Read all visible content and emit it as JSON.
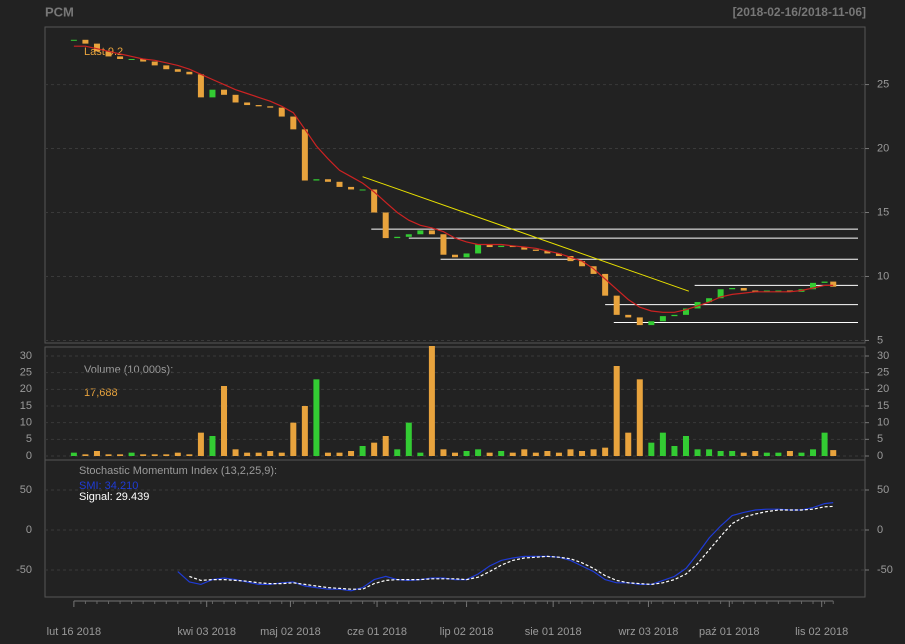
{
  "chart_data": {
    "type": "candlestick",
    "title": "PCM",
    "date_range": "[2018-02-16/2018-11-06]",
    "last_label": "Last 9.2",
    "x": [
      "2018-02-16",
      "2018-02-20",
      "2018-02-24",
      "2018-02-28",
      "2018-03-04",
      "2018-03-08",
      "2018-03-12",
      "2018-03-16",
      "2018-03-20",
      "2018-03-24",
      "2018-03-28",
      "2018-04-01",
      "2018-04-05",
      "2018-04-09",
      "2018-04-13",
      "2018-04-17",
      "2018-04-21",
      "2018-04-25",
      "2018-04-29",
      "2018-05-03",
      "2018-05-07",
      "2018-05-11",
      "2018-05-15",
      "2018-05-19",
      "2018-05-23",
      "2018-05-27",
      "2018-05-31",
      "2018-06-04",
      "2018-06-08",
      "2018-06-12",
      "2018-06-16",
      "2018-06-20",
      "2018-06-24",
      "2018-06-28",
      "2018-07-02",
      "2018-07-06",
      "2018-07-10",
      "2018-07-14",
      "2018-07-18",
      "2018-07-22",
      "2018-07-26",
      "2018-07-30",
      "2018-08-03",
      "2018-08-07",
      "2018-08-11",
      "2018-08-15",
      "2018-08-19",
      "2018-08-23",
      "2018-08-27",
      "2018-08-31",
      "2018-09-04",
      "2018-09-08",
      "2018-09-12",
      "2018-09-16",
      "2018-09-20",
      "2018-09-24",
      "2018-09-28",
      "2018-10-02",
      "2018-10-06",
      "2018-10-10",
      "2018-10-14",
      "2018-10-18",
      "2018-10-22",
      "2018-10-26",
      "2018-10-30",
      "2018-11-03",
      "2018-11-06"
    ],
    "xlim": [
      "2018-02-06",
      "2018-11-17"
    ],
    "xticks": [
      {
        "value": "2018-02-16",
        "label": "lut 16 2018"
      },
      {
        "value": "2018-04-03",
        "label": "kwi 03 2018"
      },
      {
        "value": "2018-05-02",
        "label": "maj 02 2018"
      },
      {
        "value": "2018-06-01",
        "label": "cze 01 2018"
      },
      {
        "value": "2018-07-02",
        "label": "lip 02 2018"
      },
      {
        "value": "2018-08-01",
        "label": "sie 01 2018"
      },
      {
        "value": "2018-09-03",
        "label": "wrz 03 2018"
      },
      {
        "value": "2018-10-01",
        "label": "paź 01 2018"
      },
      {
        "value": "2018-11-02",
        "label": "lis 02 2018"
      }
    ],
    "close": [
      28.5,
      28.2,
      27.6,
      27.2,
      27.0,
      27.0,
      26.8,
      26.5,
      26.2,
      26.0,
      25.8,
      24.0,
      24.6,
      24.2,
      23.6,
      23.4,
      23.3,
      23.2,
      22.5,
      21.5,
      17.5,
      17.6,
      17.4,
      17.0,
      16.8,
      16.8,
      15.0,
      13.0,
      13.1,
      13.3,
      13.6,
      13.3,
      11.7,
      11.5,
      11.8,
      12.5,
      12.3,
      12.4,
      12.3,
      12.1,
      12.0,
      11.8,
      11.6,
      11.2,
      10.8,
      10.2,
      8.5,
      7.0,
      6.8,
      6.2,
      6.5,
      6.9,
      7.0,
      7.5,
      8.0,
      8.3,
      9.0,
      9.1,
      8.9,
      8.8,
      8.9,
      8.9,
      8.8,
      9.0,
      9.5,
      9.6,
      9.2
    ],
    "up_color": "#33cc33",
    "down_color": "#e8a33d",
    "ylim": [
      4.8,
      29.5
    ],
    "yticks": [
      5,
      10,
      15,
      20,
      25
    ],
    "grid": true,
    "ma": {
      "color": "#cc2222",
      "values": [
        28.0,
        28.0,
        27.8,
        27.6,
        27.4,
        27.2,
        27.0,
        26.9,
        26.7,
        26.5,
        26.2,
        25.8,
        25.4,
        25.0,
        24.6,
        24.3,
        24.0,
        23.7,
        23.3,
        22.8,
        21.5,
        20.2,
        19.2,
        18.3,
        17.8,
        17.3,
        16.6,
        15.8,
        15.0,
        14.4,
        14.0,
        13.8,
        13.5,
        13.0,
        12.7,
        12.5,
        12.5,
        12.5,
        12.4,
        12.3,
        12.2,
        12.0,
        11.8,
        11.5,
        11.2,
        10.6,
        9.8,
        9.0,
        8.2,
        7.6,
        7.3,
        7.2,
        7.2,
        7.4,
        7.7,
        8.0,
        8.4,
        8.6,
        8.7,
        8.8,
        8.8,
        8.8,
        8.8,
        8.9,
        9.1,
        9.3,
        9.3
      ]
    },
    "trend": {
      "color": "#e8e000",
      "x": [
        "2018-05-27",
        "2018-09-17"
      ],
      "y": [
        17.8,
        8.85
      ]
    },
    "levels": {
      "color": "#ffffff",
      "x": [
        "2018-05-30",
        "2018-06-12",
        "2018-06-23",
        "2018-09-19",
        "2018-08-19",
        "2018-08-22"
      ],
      "y": [
        13.7,
        13.0,
        11.35,
        9.3,
        7.8,
        6.4
      ]
    },
    "volume": {
      "title": "Volume (10,000s):",
      "last_label": "17,688",
      "ylim": [
        -1.2,
        32.7
      ],
      "yticks": [
        0,
        5,
        10,
        15,
        20,
        25,
        30
      ],
      "values": [
        1,
        0.5,
        1.5,
        0.5,
        0.5,
        1,
        0.5,
        0.5,
        0.5,
        1,
        0.5,
        7,
        6,
        21,
        2,
        1,
        1,
        1.5,
        1,
        10,
        15,
        23,
        1,
        1,
        1.5,
        3,
        4,
        6,
        2,
        10,
        1,
        33,
        2,
        1,
        1.5,
        2,
        1,
        1.5,
        1,
        2,
        1,
        1.5,
        1,
        2,
        1.5,
        2,
        2.5,
        27,
        7,
        23,
        4,
        7,
        3,
        6,
        2,
        2,
        1.5,
        1.5,
        1,
        1.5,
        1,
        1,
        1.5,
        1,
        2,
        7,
        1.7688
      ]
    },
    "smi": {
      "title": "Stochastic Momentum Index (13,2,25,9):",
      "ylim": [
        -83.75,
        87.5
      ],
      "yticks": [
        -50,
        0,
        50
      ],
      "series": [
        {
          "name": "SMI: 34.210",
          "color": "#1f3bd6",
          "values": [
            null,
            null,
            null,
            null,
            null,
            null,
            null,
            null,
            null,
            -52,
            -65,
            -68,
            -62,
            -60,
            -62,
            -65,
            -68,
            -68,
            -66,
            -65,
            -70,
            -72,
            -74,
            -74,
            -76,
            -72,
            -62,
            -58,
            -62,
            -63,
            -62,
            -60,
            -60,
            -62,
            -62,
            -55,
            -45,
            -38,
            -35,
            -33,
            -33,
            -33,
            -34,
            -38,
            -45,
            -52,
            -62,
            -66,
            -66,
            -68,
            -68,
            -63,
            -58,
            -48,
            -30,
            -10,
            5,
            18,
            22,
            25,
            26,
            26,
            25,
            25,
            28,
            33,
            34.21
          ]
        },
        {
          "name": "Signal: 29.439",
          "color": "#ffffff",
          "values": [
            null,
            null,
            null,
            null,
            null,
            null,
            null,
            null,
            null,
            null,
            -58,
            -63,
            -62,
            -62,
            -63,
            -64,
            -66,
            -67,
            -67,
            -66,
            -68,
            -70,
            -72,
            -73,
            -74,
            -74,
            -67,
            -63,
            -62,
            -62,
            -62,
            -61,
            -61,
            -61,
            -62,
            -59,
            -52,
            -44,
            -38,
            -35,
            -34,
            -33,
            -34,
            -36,
            -41,
            -48,
            -57,
            -63,
            -66,
            -67,
            -68,
            -66,
            -62,
            -55,
            -42,
            -25,
            -8,
            8,
            16,
            20,
            23,
            25,
            25,
            25,
            26,
            29,
            29.439
          ]
        }
      ]
    }
  }
}
